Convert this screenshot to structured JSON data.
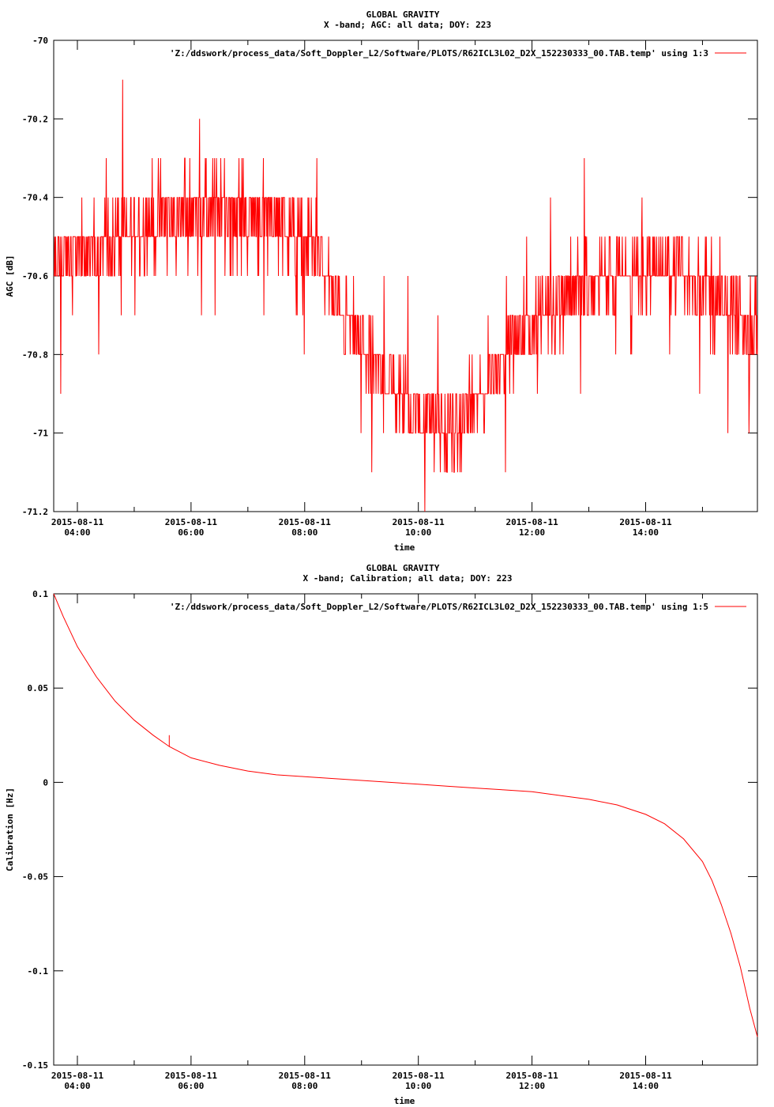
{
  "chart_data": [
    {
      "type": "line",
      "title": "GLOBAL GRAVITY",
      "subtitle": "X -band; AGC: all data; DOY: 223",
      "xlabel": "time",
      "ylabel": "AGC [dB]",
      "xlim": [
        "2015-08-11 03:35",
        "2015-08-11 15:58"
      ],
      "ylim": [
        -71.2,
        -70.0
      ],
      "x_ticks": [
        {
          "value": "2015-08-11 04:00",
          "line1": "2015-08-11",
          "line2": "04:00"
        },
        {
          "value": "2015-08-11 06:00",
          "line1": "2015-08-11",
          "line2": "06:00"
        },
        {
          "value": "2015-08-11 08:00",
          "line1": "2015-08-11",
          "line2": "08:00"
        },
        {
          "value": "2015-08-11 10:00",
          "line1": "2015-08-11",
          "line2": "10:00"
        },
        {
          "value": "2015-08-11 12:00",
          "line1": "2015-08-11",
          "line2": "12:00"
        },
        {
          "value": "2015-08-11 14:00",
          "line1": "2015-08-11",
          "line2": "14:00"
        }
      ],
      "y_ticks": [
        {
          "value": -70.0,
          "label": "-70"
        },
        {
          "value": -70.2,
          "label": "-70.2"
        },
        {
          "value": -70.4,
          "label": "-70.4"
        },
        {
          "value": -70.6,
          "label": "-70.6"
        },
        {
          "value": -70.8,
          "label": "-70.8"
        },
        {
          "value": -71.0,
          "label": "-71"
        },
        {
          "value": -71.2,
          "label": "-71.2"
        }
      ],
      "minor_x_ticks": [
        "2015-08-11 05:00",
        "2015-08-11 07:00",
        "2015-08-11 09:00",
        "2015-08-11 11:00",
        "2015-08-11 13:00",
        "2015-08-11 15:00"
      ],
      "legend_position": "top-right",
      "series": [
        {
          "name": "'Z:/ddswork/process_data/Soft_Doppler_L2/Software/PLOTS/R62ICL3L02_D2X_152230333_00.TAB.temp' using 1:3",
          "color": "#ff0000",
          "style": "noisy",
          "quantization": 0.1,
          "x": [
            "2015-08-11 03:35",
            "2015-08-11 04:30",
            "2015-08-11 05:30",
            "2015-08-11 06:30",
            "2015-08-11 07:30",
            "2015-08-11 08:10",
            "2015-08-11 08:30",
            "2015-08-11 09:00",
            "2015-08-11 09:30",
            "2015-08-11 10:00",
            "2015-08-11 10:30",
            "2015-08-11 11:00",
            "2015-08-11 11:30",
            "2015-08-11 12:00",
            "2015-08-11 12:30",
            "2015-08-11 13:00",
            "2015-08-11 14:00",
            "2015-08-11 14:30",
            "2015-08-11 15:00",
            "2015-08-11 15:30",
            "2015-08-11 15:58"
          ],
          "values": [
            -70.58,
            -70.52,
            -70.45,
            -70.44,
            -70.44,
            -70.52,
            -70.65,
            -70.78,
            -70.88,
            -70.95,
            -71.0,
            -70.93,
            -70.8,
            -70.72,
            -70.65,
            -70.62,
            -70.58,
            -70.58,
            -70.62,
            -70.7,
            -70.72
          ],
          "noise_amplitude": [
            0.15,
            0.15,
            0.18,
            0.18,
            0.18,
            0.15,
            0.15,
            0.15,
            0.15,
            0.15,
            0.17,
            0.15,
            0.15,
            0.15,
            0.15,
            0.15,
            0.15,
            0.15,
            0.15,
            0.17,
            0.2
          ]
        }
      ]
    },
    {
      "type": "line",
      "title": "GLOBAL GRAVITY",
      "subtitle": "X -band; Calibration; all data; DOY: 223",
      "xlabel": "time",
      "ylabel": "Calibration [Hz]",
      "xlim": [
        "2015-08-11 03:35",
        "2015-08-11 15:58"
      ],
      "ylim": [
        -0.15,
        0.1
      ],
      "x_ticks": [
        {
          "value": "2015-08-11 04:00",
          "line1": "2015-08-11",
          "line2": "04:00"
        },
        {
          "value": "2015-08-11 06:00",
          "line1": "2015-08-11",
          "line2": "06:00"
        },
        {
          "value": "2015-08-11 08:00",
          "line1": "2015-08-11",
          "line2": "08:00"
        },
        {
          "value": "2015-08-11 10:00",
          "line1": "2015-08-11",
          "line2": "10:00"
        },
        {
          "value": "2015-08-11 12:00",
          "line1": "2015-08-11",
          "line2": "12:00"
        },
        {
          "value": "2015-08-11 14:00",
          "line1": "2015-08-11",
          "line2": "14:00"
        }
      ],
      "y_ticks": [
        {
          "value": 0.1,
          "label": "0.1"
        },
        {
          "value": 0.05,
          "label": "0.05"
        },
        {
          "value": 0.0,
          "label": "0"
        },
        {
          "value": -0.05,
          "label": "-0.05"
        },
        {
          "value": -0.1,
          "label": "-0.1"
        },
        {
          "value": -0.15,
          "label": "-0.15"
        }
      ],
      "minor_x_ticks": [
        "2015-08-11 05:00",
        "2015-08-11 07:00",
        "2015-08-11 09:00",
        "2015-08-11 11:00",
        "2015-08-11 13:00",
        "2015-08-11 15:00"
      ],
      "legend_position": "top-right",
      "series": [
        {
          "name": "'Z:/ddswork/process_data/Soft_Doppler_L2/Software/PLOTS/R62ICL3L02_D2X_152230333_00.TAB.temp' using 1:5",
          "color": "#ff0000",
          "style": "line",
          "x": [
            "2015-08-11 03:35",
            "2015-08-11 03:45",
            "2015-08-11 04:00",
            "2015-08-11 04:20",
            "2015-08-11 04:40",
            "2015-08-11 05:00",
            "2015-08-11 05:20",
            "2015-08-11 05:37",
            "2015-08-11 05:37",
            "2015-08-11 05:37",
            "2015-08-11 06:00",
            "2015-08-11 06:30",
            "2015-08-11 07:00",
            "2015-08-11 07:30",
            "2015-08-11 08:00",
            "2015-08-11 08:30",
            "2015-08-11 09:00",
            "2015-08-11 09:30",
            "2015-08-11 10:00",
            "2015-08-11 10:30",
            "2015-08-11 11:00",
            "2015-08-11 11:30",
            "2015-08-11 12:00",
            "2015-08-11 12:30",
            "2015-08-11 13:00",
            "2015-08-11 13:30",
            "2015-08-11 14:00",
            "2015-08-11 14:20",
            "2015-08-11 14:40",
            "2015-08-11 15:00",
            "2015-08-11 15:10",
            "2015-08-11 15:20",
            "2015-08-11 15:30",
            "2015-08-11 15:40",
            "2015-08-11 15:50",
            "2015-08-11 15:58"
          ],
          "values": [
            0.1,
            0.088,
            0.072,
            0.056,
            0.043,
            0.033,
            0.025,
            0.019,
            0.025,
            0.019,
            0.013,
            0.009,
            0.006,
            0.004,
            0.003,
            0.002,
            0.001,
            0.0,
            -0.001,
            -0.002,
            -0.003,
            -0.004,
            -0.005,
            -0.007,
            -0.009,
            -0.012,
            -0.017,
            -0.022,
            -0.03,
            -0.042,
            -0.052,
            -0.065,
            -0.08,
            -0.098,
            -0.12,
            -0.135
          ]
        }
      ]
    }
  ]
}
